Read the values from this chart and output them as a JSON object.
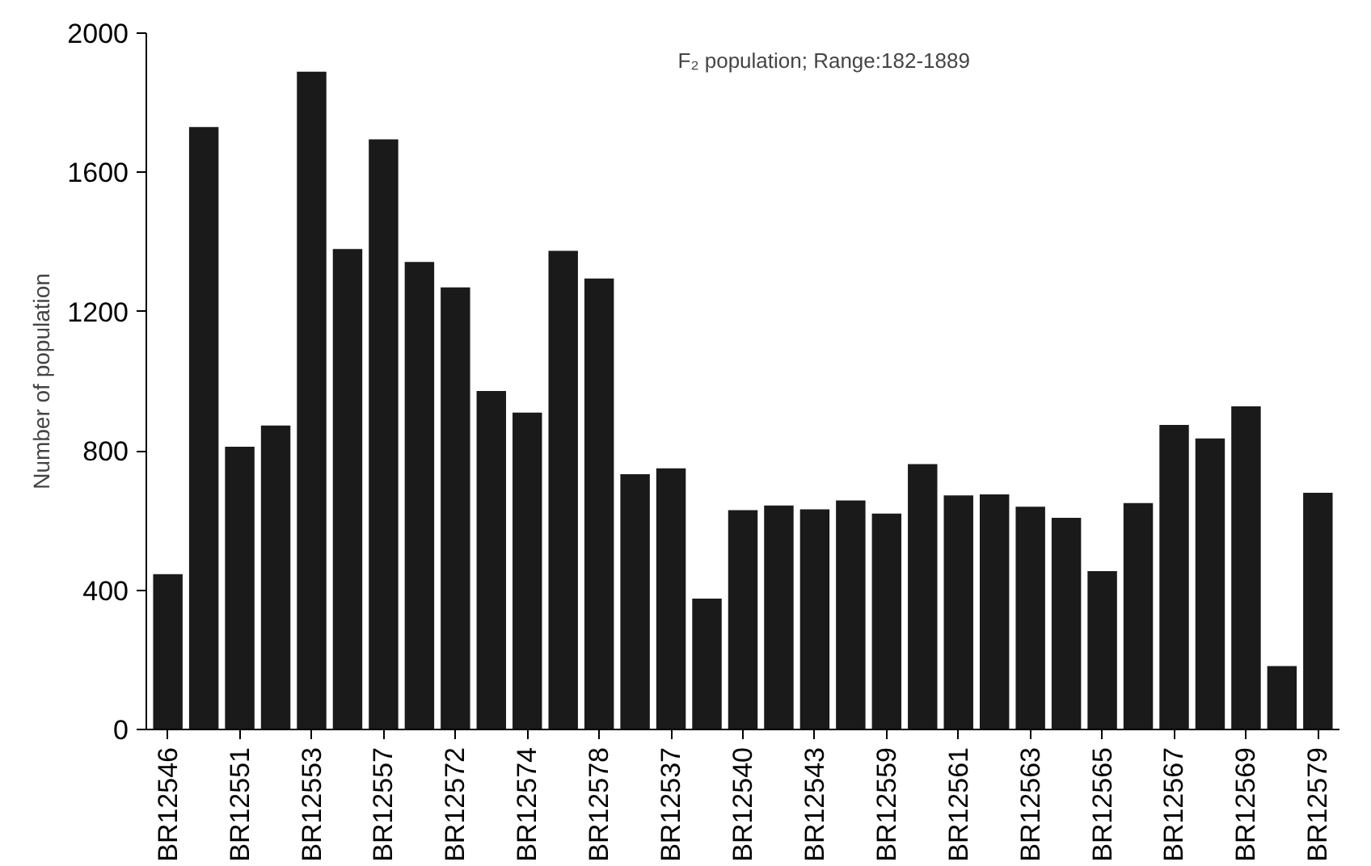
{
  "chart_data": {
    "type": "bar",
    "ylabel": "Number of population",
    "annotations": [
      "F₂ population; Range:182-1889"
    ],
    "categories": [
      "BR12546",
      null,
      "BR12551",
      null,
      "BR12553",
      null,
      "BR12557",
      null,
      "BR12572",
      null,
      "BR12574",
      null,
      "BR12578",
      null,
      "BR12537",
      null,
      "BR12540",
      null,
      "BR12543",
      null,
      "BR12559",
      null,
      "BR12561",
      null,
      "BR12563",
      null,
      "BR12565",
      null,
      "BR12567",
      null,
      "BR12569",
      null,
      "BR12579"
    ],
    "values": [
      446,
      1730,
      812,
      873,
      1889,
      1380,
      1695,
      1343,
      1270,
      972,
      910,
      1375,
      1295,
      733,
      750,
      376,
      630,
      643,
      632,
      658,
      620,
      762,
      672,
      675,
      640,
      608,
      455,
      650,
      875,
      836,
      928,
      182,
      680
    ],
    "color": "#1a1a1a",
    "ylim": [
      0,
      2000
    ],
    "yticks": [
      0,
      400,
      800,
      1200,
      1600,
      2000
    ],
    "grid": false
  }
}
